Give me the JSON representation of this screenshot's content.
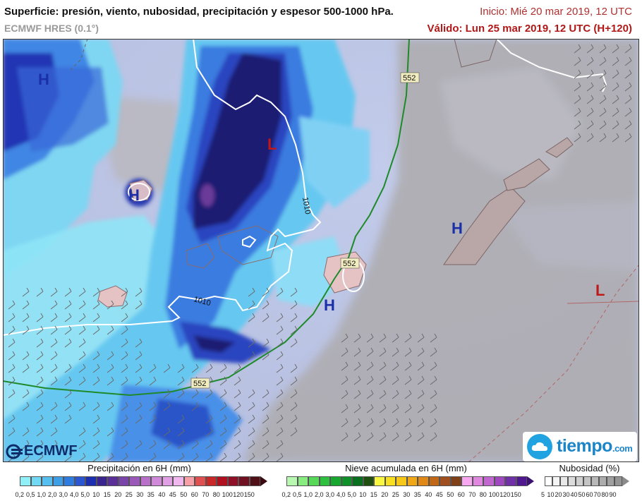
{
  "header": {
    "title": "Superficie: presión, viento, nubosidad, precipitación y espesor 500-1000 hPa.",
    "model": "ECMWF HRES (0.1°)",
    "init": "Inicio: Mié 20 mar 2019, 12 UTC",
    "valid": "Válido: Lun 25 mar 2019, 12 UTC (H+120)"
  },
  "map": {
    "pressure_centers": [
      {
        "label": "H",
        "kind": "high",
        "color": "#1a2fa8"
      },
      {
        "label": "H",
        "kind": "high",
        "color": "#1a2fa8"
      },
      {
        "label": "L",
        "kind": "low",
        "color": "#c01818"
      },
      {
        "label": "H",
        "kind": "high",
        "color": "#1a2fa8"
      },
      {
        "label": "H",
        "kind": "high",
        "color": "#1a2fa8"
      },
      {
        "label": "L",
        "kind": "low",
        "color": "#c01818"
      }
    ],
    "isobar_labels": [
      "1010",
      "1010"
    ],
    "thickness_labels": [
      "552",
      "552",
      "552"
    ],
    "isobar_color": "#ffffff",
    "thickness_color": "#1e8a2a",
    "colors": {
      "ocean": "#bcc7e6",
      "land": "#a9a3a6",
      "cloud_grey": "#b4b4b8"
    }
  },
  "logos": {
    "ecmwf": "ECMWF",
    "tiempo": "tiempo",
    "tiempo_domain": ".com"
  },
  "legends": {
    "precip": {
      "title": "Precipitación en 6H (mm)",
      "ticks": [
        "0,2",
        "0,5",
        "1,0",
        "2,0",
        "3,0",
        "4,0",
        "5,0",
        "10",
        "15",
        "20",
        "25",
        "30",
        "35",
        "40",
        "45",
        "50",
        "60",
        "70",
        "80",
        "100",
        "120",
        "150"
      ],
      "colors": [
        "#8ff0f8",
        "#72d9f5",
        "#57bff0",
        "#3f9fe6",
        "#2f7ce0",
        "#2a56d2",
        "#1d2fb0",
        "#3a2590",
        "#5a3098",
        "#7a44a8",
        "#9a58b8",
        "#b870c8",
        "#d088d8",
        "#e2a0e4",
        "#f0b8ee",
        "#f8a0a8",
        "#e05050",
        "#c82828",
        "#b01020",
        "#901028",
        "#701020",
        "#501018"
      ]
    },
    "snow": {
      "title": "Nieve acumulada en 6H (mm)",
      "ticks": [
        "0,2",
        "0,5",
        "1,0",
        "2,0",
        "3,0",
        "4,0",
        "5,0",
        "10",
        "15",
        "20",
        "25",
        "30",
        "35",
        "40",
        "45",
        "50",
        "60",
        "70",
        "80",
        "100",
        "120",
        "150"
      ],
      "colors": [
        "#b8f8b0",
        "#88ec80",
        "#58d858",
        "#30c040",
        "#18a830",
        "#109028",
        "#0a7020",
        "#205010",
        "#f8f840",
        "#f8e020",
        "#f8c818",
        "#f0a818",
        "#e08818",
        "#c06818",
        "#a05020",
        "#804018",
        "#f8a8f0",
        "#e088e0",
        "#c068d0",
        "#a048c0",
        "#7030a8",
        "#501890"
      ]
    },
    "cloud": {
      "title": "Nubosidad (%)",
      "ticks": [
        "5",
        "10",
        "20",
        "30",
        "40",
        "50",
        "60",
        "70",
        "80",
        "90"
      ],
      "colors": [
        "#ffffff",
        "#f4f4f4",
        "#e8e8e8",
        "#dcdcdc",
        "#d0d0d0",
        "#c4c4c4",
        "#b8b8b8",
        "#acacac",
        "#a0a0a0",
        "#949494"
      ]
    }
  }
}
